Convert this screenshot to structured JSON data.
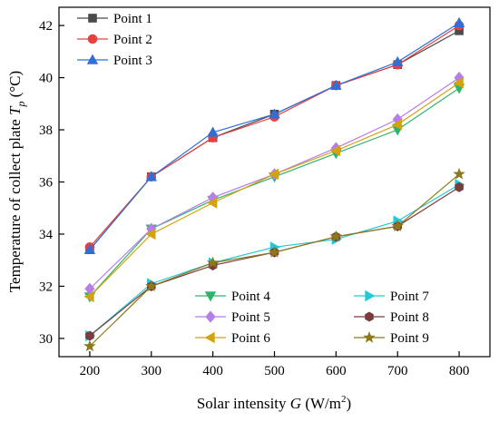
{
  "chart_data": {
    "type": "line",
    "x": [
      200,
      300,
      400,
      500,
      600,
      700,
      800
    ],
    "xlim": [
      150,
      850
    ],
    "ylim": [
      29.3,
      42.7
    ],
    "xticks": [
      200,
      300,
      400,
      500,
      600,
      700,
      800
    ],
    "yticks": [
      30,
      32,
      34,
      36,
      38,
      40,
      42
    ],
    "xtick_labels": [
      "200",
      "300",
      "400",
      "500",
      "600",
      "700",
      "800"
    ],
    "ytick_labels": [
      "30",
      "32",
      "34",
      "36",
      "38",
      "40",
      "42"
    ],
    "xlabel": {
      "pre": "Solar intensity ",
      "var": "G",
      "post": " (W/m",
      "sup": "2",
      "close": ")"
    },
    "ylabel": {
      "pre": "Temperature of collect plate ",
      "var": "T",
      "sub": "p",
      "post": " (°C)"
    },
    "grid": false,
    "series": [
      {
        "name": "Point 1",
        "color": "#4a4a4a",
        "marker": "square",
        "values": [
          33.4,
          36.2,
          37.7,
          38.6,
          39.7,
          40.5,
          41.8
        ]
      },
      {
        "name": "Point 2",
        "color": "#e84040",
        "marker": "circle",
        "values": [
          33.5,
          36.2,
          37.7,
          38.5,
          39.7,
          40.5,
          42.0
        ]
      },
      {
        "name": "Point 3",
        "color": "#2f6fd6",
        "marker": "triangle-up",
        "values": [
          33.4,
          36.2,
          37.9,
          38.6,
          39.7,
          40.6,
          42.1
        ]
      },
      {
        "name": "Point 4",
        "color": "#2fb36b",
        "marker": "triangle-down",
        "values": [
          31.6,
          34.2,
          35.3,
          36.2,
          37.1,
          38.0,
          39.6
        ]
      },
      {
        "name": "Point 5",
        "color": "#b57ee8",
        "marker": "diamond",
        "values": [
          31.9,
          34.2,
          35.4,
          36.3,
          37.3,
          38.4,
          40.0
        ]
      },
      {
        "name": "Point 6",
        "color": "#d2a30e",
        "marker": "triangle-left",
        "values": [
          31.6,
          34.0,
          35.2,
          36.3,
          37.2,
          38.2,
          39.8
        ]
      },
      {
        "name": "Point 7",
        "color": "#23c9d6",
        "marker": "triangle-right",
        "values": [
          30.1,
          32.1,
          32.9,
          33.5,
          33.8,
          34.5,
          35.9
        ]
      },
      {
        "name": "Point 8",
        "color": "#7a3d3d",
        "marker": "hexagon",
        "values": [
          30.1,
          32.0,
          32.8,
          33.3,
          33.9,
          34.3,
          35.8
        ]
      },
      {
        "name": "Point 9",
        "color": "#8a7a1a",
        "marker": "star",
        "values": [
          29.7,
          32.0,
          32.9,
          33.3,
          33.9,
          34.3,
          36.3
        ]
      }
    ],
    "legends": [
      {
        "location": "top-left",
        "items": [
          0,
          1,
          2
        ]
      },
      {
        "location": "bottom-left",
        "items": [
          3,
          4,
          5
        ]
      },
      {
        "location": "bottom-right",
        "items": [
          6,
          7,
          8
        ]
      }
    ]
  }
}
